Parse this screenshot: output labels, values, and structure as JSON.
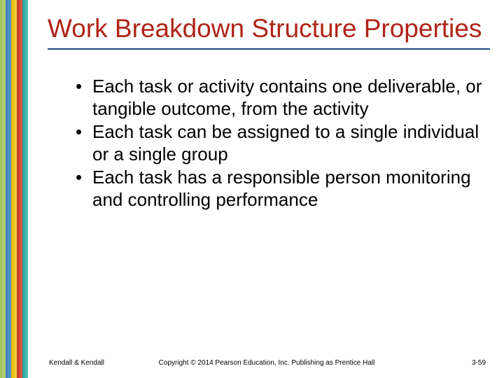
{
  "sidebar": {
    "stripes": [
      "#b8d176",
      "#5a9bd5",
      "#f4d040",
      "#e05a4a",
      "#4fc4b8"
    ]
  },
  "title": {
    "text": "Work Breakdown Structure Properties",
    "color": "#b02418",
    "underline_color": "#1a4a7a",
    "fontsize": 37
  },
  "bullets": {
    "items": [
      "Each task or activity contains one deliverable, or tangible outcome, from the activity",
      "Each task can be assigned to a single individual or a single group",
      "Each task has a responsible person monitoring and controlling performance"
    ],
    "fontsize": 26,
    "color": "#000000"
  },
  "footer": {
    "author": "Kendall & Kendall",
    "copyright": "Copyright © 2014 Pearson Education, Inc. Publishing as Prentice Hall",
    "page": "3-59",
    "fontsize": 10
  }
}
